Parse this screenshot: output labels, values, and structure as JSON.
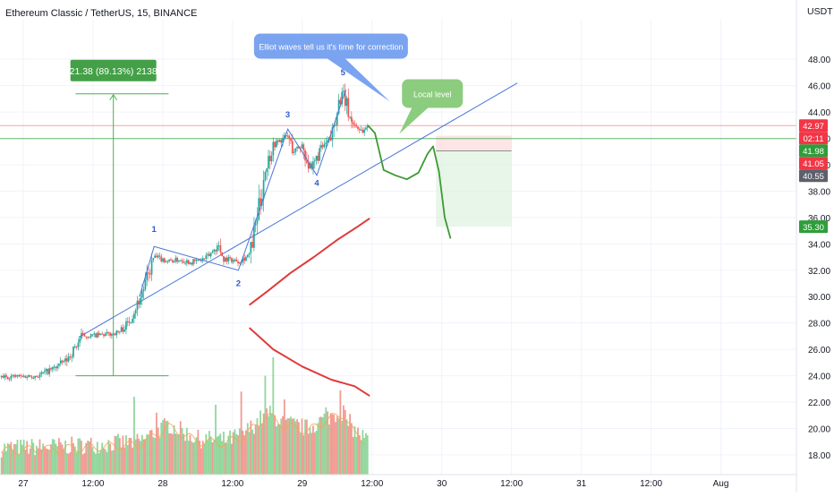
{
  "header": {
    "title": "Ethereum Classic / TetherUS, 15, BINANCE",
    "currency": "USDT"
  },
  "colors": {
    "up": "#26a69a",
    "down": "#ef5350",
    "trendline": "#4a76d8",
    "projection": "#3c9a33",
    "annotation_blue": "#7aa3f0",
    "annotation_green": "#8ccc7e",
    "price_red": "#f23645",
    "price_green": "#2e9e3b",
    "badge_gray": "#5d606b"
  },
  "chart_data": {
    "type": "candlestick",
    "title": "Ethereum Classic / TetherUS, 15, BINANCE",
    "y_axis": {
      "unit": "USDT",
      "range": [
        16.5,
        51
      ],
      "ticks": [
        "48.00",
        "46.00",
        "44.00",
        "42.00",
        "40.00",
        "38.00",
        "36.00",
        "34.00",
        "32.00",
        "30.00",
        "28.00",
        "26.00",
        "24.00",
        "22.00",
        "20.00",
        "18.00"
      ]
    },
    "x_axis": {
      "range_hours": [
        -8,
        266
      ],
      "tick_labels": [
        {
          "t": 0,
          "label": "27"
        },
        {
          "t": 24,
          "label": "12:00"
        },
        {
          "t": 48,
          "label": "28"
        },
        {
          "t": 72,
          "label": "12:00"
        },
        {
          "t": 96,
          "label": "29"
        },
        {
          "t": 120,
          "label": "12:00"
        },
        {
          "t": 144,
          "label": "30"
        },
        {
          "t": 168,
          "label": "12:00"
        },
        {
          "t": 192,
          "label": "31"
        },
        {
          "t": 216,
          "label": "12:00"
        },
        {
          "t": 240,
          "label": "Aug"
        }
      ]
    },
    "price_path": [
      [
        -8,
        23.9
      ],
      [
        5,
        24.0
      ],
      [
        10,
        24.5
      ],
      [
        15,
        25.2
      ],
      [
        18,
        26.2
      ],
      [
        20,
        27.0
      ],
      [
        28,
        27.1
      ],
      [
        33,
        27.3
      ],
      [
        36,
        28.0
      ],
      [
        40,
        29.8
      ],
      [
        43,
        31.6
      ],
      [
        45,
        33.0
      ],
      [
        50,
        32.7
      ],
      [
        54,
        32.8
      ],
      [
        58,
        32.6
      ],
      [
        63,
        32.9
      ],
      [
        67,
        33.9
      ],
      [
        69,
        32.9
      ],
      [
        74,
        32.7
      ],
      [
        78,
        33.2
      ],
      [
        81,
        36.5
      ],
      [
        83,
        39.5
      ],
      [
        86,
        41.5
      ],
      [
        91,
        42.2
      ],
      [
        93,
        41.0
      ],
      [
        96,
        41.5
      ],
      [
        99,
        39.4
      ],
      [
        102,
        41.1
      ],
      [
        106,
        42.0
      ],
      [
        108,
        44.5
      ],
      [
        110,
        45.4
      ],
      [
        113,
        43.2
      ],
      [
        117,
        42.5
      ],
      [
        118.5,
        43.0
      ]
    ],
    "volume_axis_max": 26,
    "volume_path": [
      [
        -8,
        18.3
      ],
      [
        20,
        18.5
      ],
      [
        40,
        18.8
      ],
      [
        50,
        20.1
      ],
      [
        60,
        19.0
      ],
      [
        70,
        18.9
      ],
      [
        76,
        19.4
      ],
      [
        84,
        21.0
      ],
      [
        90,
        20.2
      ],
      [
        98,
        19.8
      ],
      [
        104,
        20.6
      ],
      [
        110,
        21.1
      ],
      [
        114,
        19.6
      ],
      [
        118.5,
        18.9
      ]
    ],
    "volume_spikes": [
      [
        38,
        22.4
      ],
      [
        46,
        21.2
      ],
      [
        66,
        21.8
      ],
      [
        75,
        22.8
      ],
      [
        83,
        24.0
      ],
      [
        86,
        25.4
      ],
      [
        90,
        22.2
      ],
      [
        104,
        21.6
      ],
      [
        109,
        22.9
      ],
      [
        112,
        20.2
      ]
    ],
    "last_price": 42.97,
    "price_labels": [
      {
        "value": "42.97",
        "style": "red"
      },
      {
        "value": "02:11",
        "style": "red",
        "kind": "countdown"
      },
      {
        "value": "41.98",
        "style": "green"
      },
      {
        "value": "41.05",
        "style": "red"
      },
      {
        "value": "40.55",
        "style": "gray"
      },
      {
        "value": "35.30",
        "style": "green"
      }
    ],
    "wave_labels": [
      {
        "label": "1",
        "t": 45,
        "v": 34.9
      },
      {
        "label": "2",
        "t": 74,
        "v": 30.8
      },
      {
        "label": "3",
        "t": 91,
        "v": 43.6
      },
      {
        "label": "4",
        "t": 101,
        "v": 38.4
      },
      {
        "label": "5",
        "t": 110,
        "v": 46.8
      }
    ],
    "wave_path": [
      [
        40,
        30
      ],
      [
        45,
        33.8
      ],
      [
        74,
        32.0
      ],
      [
        91,
        42.7
      ],
      [
        101,
        39.2
      ],
      [
        111,
        45.7
      ]
    ],
    "trendline": [
      [
        19,
        26.9
      ],
      [
        170,
        46.2
      ]
    ],
    "measure": {
      "label": "21.38 (89.13%) 2138",
      "low": 24.0,
      "high": 45.38,
      "t_left": 18,
      "t_right": 50,
      "t_arrow": 31
    },
    "horizontal_lines": [
      {
        "value": 42.97,
        "style": "red-thin"
      },
      {
        "value": 41.98,
        "style": "green-thin"
      }
    ],
    "projection_path": [
      [
        118.5,
        43.0
      ],
      [
        121,
        42.4
      ],
      [
        124,
        39.6
      ],
      [
        128,
        39.2
      ],
      [
        132,
        38.9
      ],
      [
        136,
        39.4
      ],
      [
        139,
        40.8
      ],
      [
        141,
        41.4
      ],
      [
        143,
        39.5
      ],
      [
        145,
        36.0
      ],
      [
        147,
        34.4
      ]
    ],
    "target_box": {
      "t_start": 142,
      "t_end": 168,
      "top": 42.2,
      "entry": 41.05,
      "target": 35.3
    },
    "decorative_curves": [
      [
        [
          78,
          29.4
        ],
        [
          84,
          30.4
        ],
        [
          92,
          31.8
        ],
        [
          100,
          33.0
        ],
        [
          108,
          34.3
        ],
        [
          115,
          35.3
        ],
        [
          119,
          35.9
        ]
      ],
      [
        [
          78,
          27.6
        ],
        [
          86,
          26.0
        ],
        [
          96,
          24.7
        ],
        [
          106,
          23.7
        ],
        [
          114,
          23.2
        ],
        [
          119,
          22.5
        ]
      ]
    ],
    "annotations": [
      {
        "text": "Elliot waves tell us it's time for correction",
        "style": "blue-callout",
        "t": 80,
        "v": 49.0
      },
      {
        "text": "Local level",
        "style": "green-callout",
        "t": 138,
        "v": 45.4
      }
    ]
  }
}
